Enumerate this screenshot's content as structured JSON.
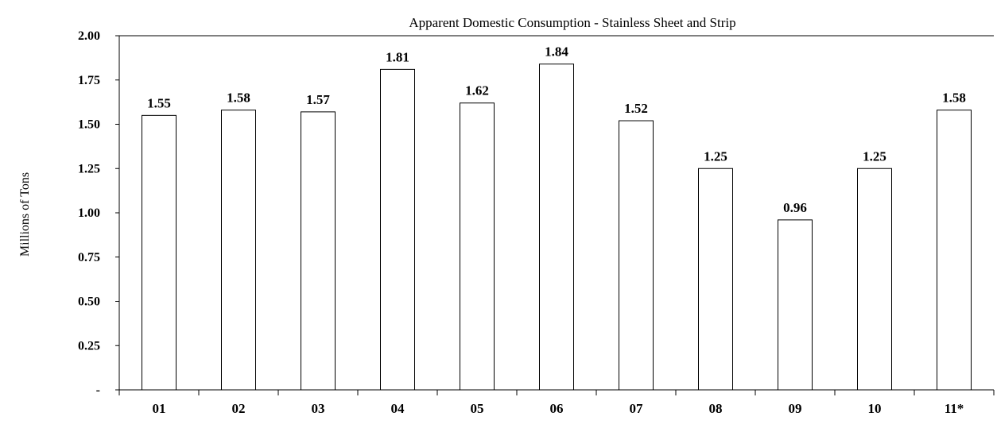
{
  "chart_data": {
    "type": "bar",
    "title": "Apparent Domestic Consumption - Stainless Sheet and Strip",
    "ylabel": "Millions of Tons",
    "xlabel": "",
    "categories": [
      "01",
      "02",
      "03",
      "04",
      "05",
      "06",
      "07",
      "08",
      "09",
      "10",
      "11*"
    ],
    "values": [
      1.55,
      1.58,
      1.57,
      1.81,
      1.62,
      1.84,
      1.52,
      1.25,
      0.96,
      1.25,
      1.58
    ],
    "value_labels": [
      "1.55",
      "1.58",
      "1.57",
      "1.81",
      "1.62",
      "1.84",
      "1.52",
      "1.25",
      "0.96",
      "1.25",
      "1.58"
    ],
    "ylim": [
      0,
      2.0
    ],
    "yticks": [
      0,
      0.25,
      0.5,
      0.75,
      1.0,
      1.25,
      1.5,
      1.75,
      2.0
    ],
    "ytick_labels": [
      "-",
      "0.25",
      "0.50",
      "0.75",
      "1.00",
      "1.25",
      "1.50",
      "1.75",
      "2.00"
    ],
    "grid": false,
    "legend": "none",
    "bar_fill": "#ffffff",
    "bar_stroke": "#000000"
  }
}
